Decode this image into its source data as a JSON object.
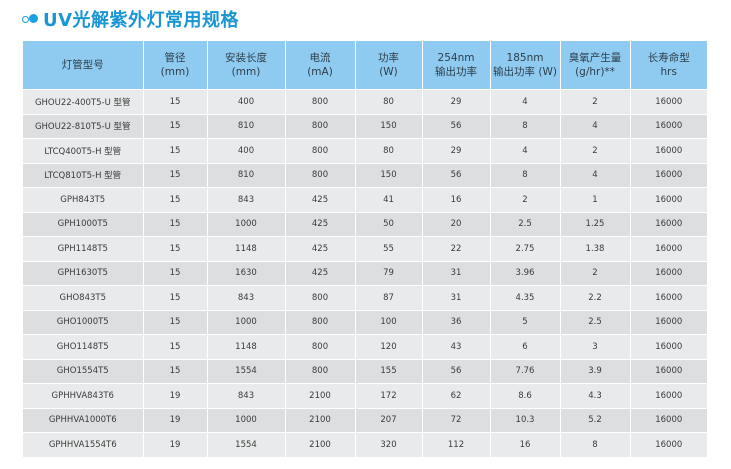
{
  "title": "UV光解紫外灯常用规格",
  "columns": [
    [
      "灯管型号"
    ],
    [
      "管径",
      "(mm)"
    ],
    [
      "安装长度",
      "(mm)"
    ],
    [
      "电流",
      "(mA)"
    ],
    [
      "功率",
      "(W)"
    ],
    [
      "254nm",
      "输出功率"
    ],
    [
      "185nm",
      "输出功率 (W)"
    ],
    [
      "臭氧产生量",
      "(g/hr)**"
    ],
    [
      "长寿命型",
      "hrs"
    ]
  ],
  "rows": [
    [
      "GHOU22-400T5-U 型管",
      "15",
      "400",
      "800",
      "80",
      "29",
      "4",
      "2",
      "16000"
    ],
    [
      "GHOU22-810T5-U 型管",
      "15",
      "810",
      "800",
      "150",
      "56",
      "8",
      "4",
      "16000"
    ],
    [
      "LTCQ400T5-H 型管",
      "15",
      "400",
      "800",
      "80",
      "29",
      "4",
      "2",
      "16000"
    ],
    [
      "LTCQ810T5-H 型管",
      "15",
      "810",
      "800",
      "150",
      "56",
      "8",
      "4",
      "16000"
    ],
    [
      "GPH843T5",
      "15",
      "843",
      "425",
      "41",
      "16",
      "2",
      "1",
      "16000"
    ],
    [
      "GPH1000T5",
      "15",
      "1000",
      "425",
      "50",
      "20",
      "2.5",
      "1.25",
      "16000"
    ],
    [
      "GPH1148T5",
      "15",
      "1148",
      "425",
      "55",
      "22",
      "2.75",
      "1.38",
      "16000"
    ],
    [
      "GPH1630T5",
      "15",
      "1630",
      "425",
      "79",
      "31",
      "3.96",
      "2",
      "16000"
    ],
    [
      "GHO843T5",
      "15",
      "843",
      "800",
      "87",
      "31",
      "4.35",
      "2.2",
      "16000"
    ],
    [
      "GHO1000T5",
      "15",
      "1000",
      "800",
      "100",
      "36",
      "5",
      "2.5",
      "16000"
    ],
    [
      "GHO1148T5",
      "15",
      "1148",
      "800",
      "120",
      "43",
      "6",
      "3",
      "16000"
    ],
    [
      "GHO1554T5",
      "15",
      "1554",
      "800",
      "155",
      "56",
      "7.76",
      "3.9",
      "16000"
    ],
    [
      "GPHHVA843T6",
      "19",
      "843",
      "2100",
      "172",
      "62",
      "8.6",
      "4.3",
      "16000"
    ],
    [
      "GPHHVA1000T6",
      "19",
      "1000",
      "2100",
      "207",
      "72",
      "10.3",
      "5.2",
      "16000"
    ],
    [
      "GPHHVA1554T6",
      "19",
      "1554",
      "2100",
      "320",
      "112",
      "16",
      "8",
      "16000"
    ]
  ]
}
